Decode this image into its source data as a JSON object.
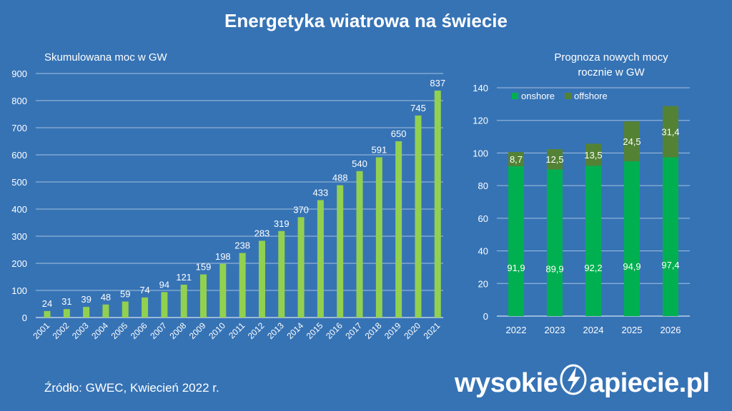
{
  "title": "Energetyka wiatrowa na świecie",
  "source": "Źródło: GWEC, Kwiecień 2022 r.",
  "logo": {
    "left": "wysokie",
    "right": "apiecie.pl",
    "icon": "lightning-bolt-icon"
  },
  "colors": {
    "background": "#3673b5",
    "left_bars": "#92d050",
    "onshore": "#00b050",
    "offshore": "#548235"
  },
  "chart_data": [
    {
      "type": "bar",
      "title": "Skumulowana moc w GW",
      "categories": [
        "2001",
        "2002",
        "2003",
        "2004",
        "2005",
        "2006",
        "2007",
        "2008",
        "2009",
        "2010",
        "2011",
        "2012",
        "2013",
        "2014",
        "2015",
        "2016",
        "2017",
        "2018",
        "2019",
        "2020",
        "2021"
      ],
      "values": [
        24,
        31,
        39,
        48,
        59,
        74,
        94,
        121,
        159,
        198,
        238,
        283,
        319,
        370,
        433,
        488,
        540,
        591,
        650,
        745,
        837
      ],
      "ylim": [
        0,
        900
      ],
      "yticks": [
        0,
        100,
        200,
        300,
        400,
        500,
        600,
        700,
        800,
        900
      ],
      "grid": true
    },
    {
      "type": "bar",
      "stacked": true,
      "title": "Prognoza nowych mocy\nrocznie w GW",
      "categories": [
        "2022",
        "2023",
        "2024",
        "2025",
        "2026"
      ],
      "series": [
        {
          "name": "onshore",
          "values": [
            91.9,
            89.9,
            92.2,
            94.9,
            97.4
          ],
          "labels": [
            "91,9",
            "89,9",
            "92,2",
            "94,9",
            "97,4"
          ]
        },
        {
          "name": "offshore",
          "values": [
            8.7,
            12.5,
            13.5,
            24.5,
            31.4
          ],
          "labels": [
            "8,7",
            "12,5",
            "13,5",
            "24,5",
            "31,4"
          ]
        }
      ],
      "ylim": [
        0,
        140
      ],
      "yticks": [
        0,
        20,
        40,
        60,
        80,
        100,
        120,
        140
      ],
      "legend": "top-left",
      "grid": true
    }
  ]
}
